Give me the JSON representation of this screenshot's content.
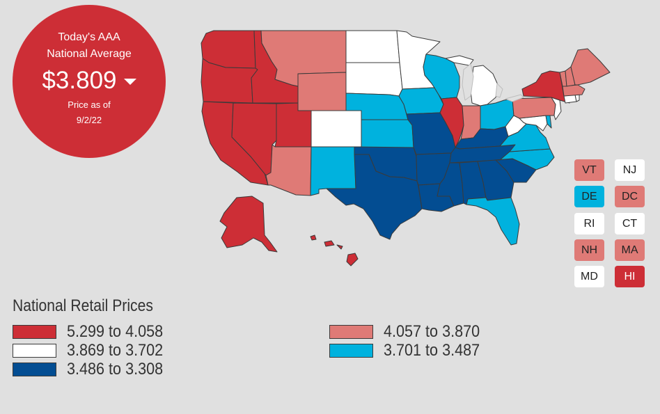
{
  "badge": {
    "line1": "Today's AAA",
    "line2": "National Average",
    "price": "$3.809",
    "trend_icon": "caret-down-icon",
    "as_of_label": "Price as of",
    "as_of_date": "9/2/22"
  },
  "colors": {
    "tier1": "#cd2e36",
    "tier2": "#df7a76",
    "tier3": "#ffffff",
    "tier4": "#00b2de",
    "tier5": "#034d92",
    "lakes": "#e0e0e0"
  },
  "small_states": [
    {
      "abbr": "VT",
      "tier": "tier2"
    },
    {
      "abbr": "NJ",
      "tier": "tier3"
    },
    {
      "abbr": "DE",
      "tier": "tier4"
    },
    {
      "abbr": "DC",
      "tier": "tier2"
    },
    {
      "abbr": "RI",
      "tier": "tier3"
    },
    {
      "abbr": "CT",
      "tier": "tier3"
    },
    {
      "abbr": "NH",
      "tier": "tier2"
    },
    {
      "abbr": "MA",
      "tier": "tier2"
    },
    {
      "abbr": "MD",
      "tier": "tier3"
    },
    {
      "abbr": "HI",
      "tier": "tier1"
    }
  ],
  "legend": {
    "title": "National Retail Prices",
    "items": [
      {
        "label": "5.299 to 4.058",
        "tier": "tier1"
      },
      {
        "label": "3.869 to 3.702",
        "tier": "tier3"
      },
      {
        "label": "3.486 to 3.308",
        "tier": "tier5"
      },
      {
        "label": "4.057 to 3.870",
        "tier": "tier2"
      },
      {
        "label": "3.701 to 3.487",
        "tier": "tier4"
      }
    ]
  },
  "states": {
    "WA": "tier1",
    "OR": "tier1",
    "CA": "tier1",
    "NV": "tier1",
    "ID": "tier1",
    "UT": "tier1",
    "AK": "tier1",
    "IL": "tier1",
    "NY": "tier1",
    "HI": "tier1",
    "MT": "tier2",
    "WY": "tier2",
    "AZ": "tier2",
    "IN": "tier2",
    "PA": "tier2",
    "ME": "tier2",
    "VT": "tier2",
    "NH": "tier2",
    "MA": "tier2",
    "ND": "tier3",
    "SD": "tier3",
    "MN": "tier3",
    "CO": "tier3",
    "MI": "tier3",
    "WV": "tier3",
    "NJ": "tier3",
    "CT": "tier3",
    "RI": "tier3",
    "MD": "tier3",
    "NE": "tier4",
    "KS": "tier4",
    "IA": "tier4",
    "WI": "tier4",
    "NM": "tier4",
    "OH": "tier4",
    "VA": "tier4",
    "NC": "tier4",
    "FL": "tier4",
    "DE": "tier4",
    "TX": "tier5",
    "OK": "tier5",
    "MO": "tier5",
    "AR": "tier5",
    "LA": "tier5",
    "MS": "tier5",
    "AL": "tier5",
    "GA": "tier5",
    "SC": "tier5",
    "TN": "tier5",
    "KY": "tier5"
  }
}
